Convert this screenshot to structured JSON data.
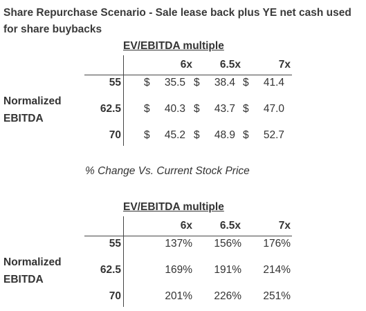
{
  "title": "Share Repurchase Scenario - Sale lease back plus YE net cash used for share buybacks",
  "table1": {
    "header": "EV/EBITDA multiple",
    "columns": [
      "6x",
      "6.5x",
      "7x"
    ],
    "side_label_line1": "Normalized",
    "side_label_line2": "EBITDA",
    "rows": [
      {
        "label": "55",
        "values": [
          "35.5",
          "38.4",
          "41.4"
        ]
      },
      {
        "label": "62.5",
        "values": [
          "40.3",
          "43.7",
          "47.0"
        ]
      },
      {
        "label": "70",
        "values": [
          "45.2",
          "48.9",
          "52.7"
        ]
      }
    ],
    "currency": "$"
  },
  "subtitle": "% Change Vs. Current Stock Price",
  "table2": {
    "header": "EV/EBITDA multiple",
    "columns": [
      "6x",
      "6.5x",
      "7x"
    ],
    "side_label_line1": "Normalized",
    "side_label_line2": "EBITDA",
    "rows": [
      {
        "label": "55",
        "values": [
          "137%",
          "156%",
          "176%"
        ]
      },
      {
        "label": "62.5",
        "values": [
          "169%",
          "191%",
          "214%"
        ]
      },
      {
        "label": "70",
        "values": [
          "201%",
          "226%",
          "251%"
        ]
      }
    ]
  }
}
